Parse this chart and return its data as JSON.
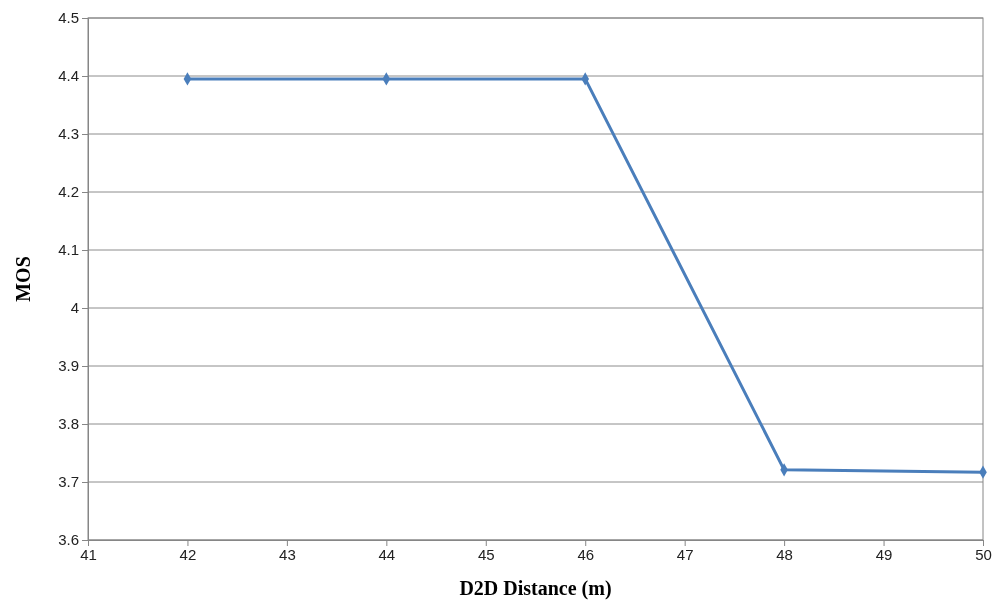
{
  "chart_data": {
    "type": "line",
    "xlabel": "D2D Distance (m)",
    "ylabel": "MOS",
    "x": [
      42,
      44,
      46,
      48,
      50
    ],
    "series": [
      {
        "color": "#4a7ebb",
        "values": [
          4.395,
          4.395,
          4.395,
          3.721,
          3.717
        ]
      }
    ],
    "xlim": [
      41,
      50
    ],
    "xticks": [
      41,
      42,
      43,
      44,
      45,
      46,
      47,
      48,
      49,
      50
    ],
    "ylim": [
      3.6,
      4.5
    ],
    "yticks": [
      3.6,
      3.7,
      3.8,
      3.9,
      4,
      4.1,
      4.2,
      4.3,
      4.4,
      4.5
    ],
    "grid": "y",
    "marker": "diamond",
    "line_style": "solid"
  }
}
